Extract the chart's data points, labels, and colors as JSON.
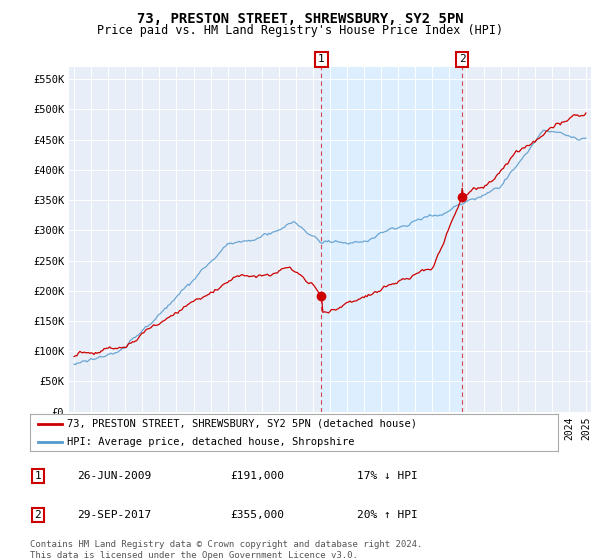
{
  "title": "73, PRESTON STREET, SHREWSBURY, SY2 5PN",
  "subtitle": "Price paid vs. HM Land Registry's House Price Index (HPI)",
  "hpi_label": "HPI: Average price, detached house, Shropshire",
  "property_label": "73, PRESTON STREET, SHREWSBURY, SY2 5PN (detached house)",
  "transaction1_date": "26-JUN-2009",
  "transaction1_price": 191000,
  "transaction1_hpi": "17% ↓ HPI",
  "transaction2_date": "29-SEP-2017",
  "transaction2_price": 355000,
  "transaction2_hpi": "20% ↑ HPI",
  "footnote": "Contains HM Land Registry data © Crown copyright and database right 2024.\nThis data is licensed under the Open Government Licence v3.0.",
  "property_color": "#cc0000",
  "hpi_color": "#5599cc",
  "shade_color": "#ddeeff",
  "background_color": "#ffffff",
  "plot_background": "#e8eef8",
  "ylim": [
    0,
    560000
  ],
  "yticks": [
    0,
    50000,
    100000,
    150000,
    200000,
    250000,
    300000,
    350000,
    400000,
    450000,
    500000,
    550000
  ],
  "transaction1_x": 2009.5,
  "transaction2_x": 2017.75,
  "xstart": 1995,
  "xend": 2025
}
